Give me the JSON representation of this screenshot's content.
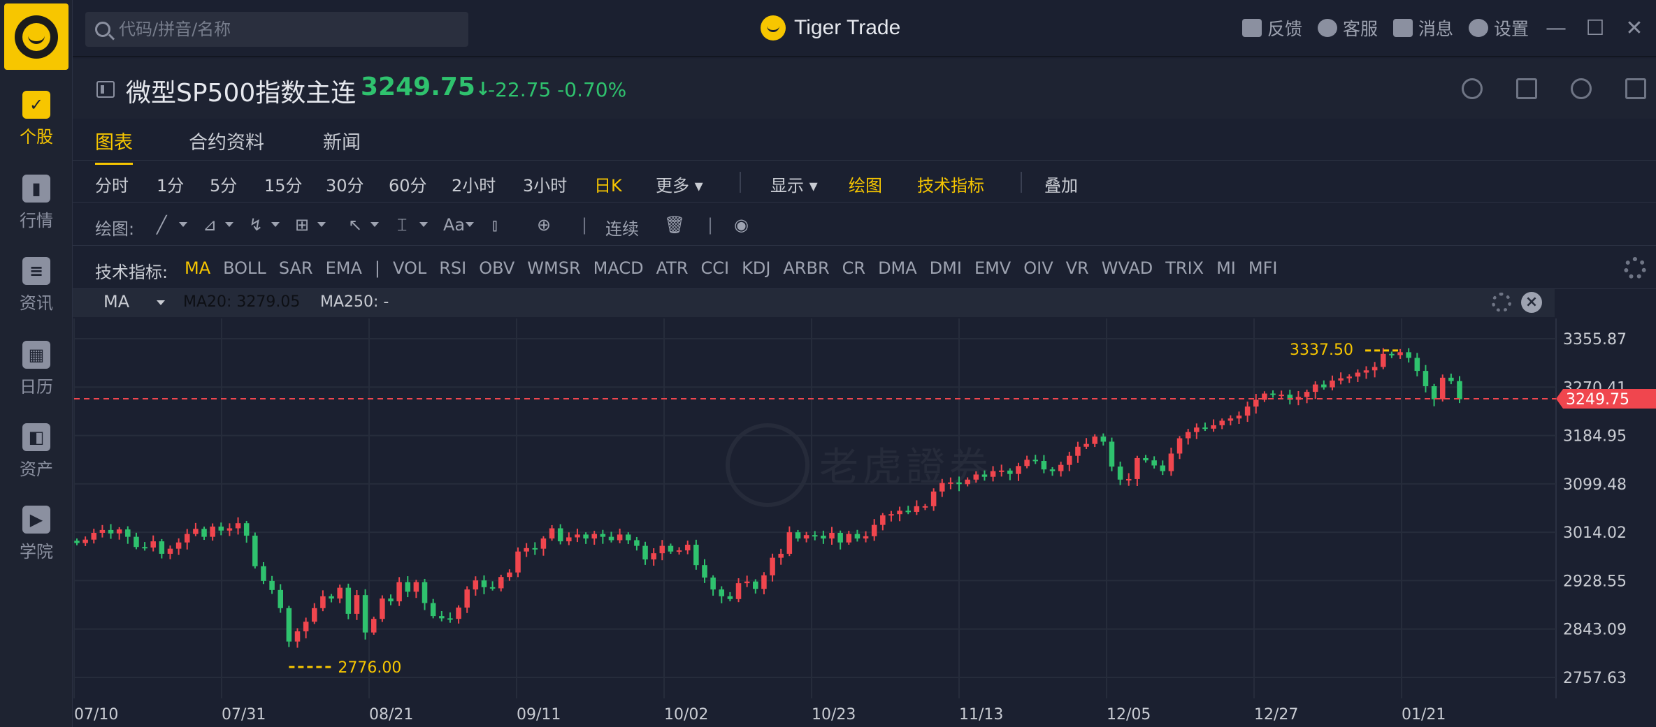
{
  "app": {
    "title": "Tiger Trade"
  },
  "search": {
    "placeholder": "代码/拼音/名称"
  },
  "top_actions": {
    "feedback": "反馈",
    "service": "客服",
    "messages": "消息",
    "settings": "设置"
  },
  "sidebar": {
    "items": [
      {
        "label": "个股",
        "active": true
      },
      {
        "label": "行情"
      },
      {
        "label": "资讯"
      },
      {
        "label": "日历"
      },
      {
        "label": "资产"
      },
      {
        "label": "学院"
      }
    ]
  },
  "instrument": {
    "name": "微型SP500指数主连",
    "price": "3249.75",
    "arrow": "↓",
    "change": "-22.75",
    "change_pct": "-0.70%"
  },
  "tabs": [
    "图表",
    "合约资料",
    "新闻"
  ],
  "periods": {
    "items": [
      "分时",
      "1分",
      "5分",
      "15分",
      "30分",
      "60分",
      "2小时",
      "3小时",
      "日K"
    ],
    "active": "日K",
    "more": "更多",
    "display": "显示",
    "draw": "绘图",
    "tech": "技术指标",
    "overlay": "叠加"
  },
  "drawbar": {
    "label": "绘图:",
    "continuous": "连续"
  },
  "indicators": {
    "label": "技术指标:",
    "list": [
      "MA",
      "BOLL",
      "SAR",
      "EMA",
      "|",
      "VOL",
      "RSI",
      "OBV",
      "WMSR",
      "MACD",
      "ATR",
      "CCI",
      "KDJ",
      "ARBR",
      "CR",
      "DMA",
      "DMI",
      "EMV",
      "OIV",
      "VR",
      "WVAD",
      "TRIX",
      "MI",
      "MFI"
    ],
    "active": "MA"
  },
  "ma": {
    "selector": "MA",
    "ma20": "MA20: 3279.05",
    "ma250": "MA250: -"
  },
  "watermark": "老虎證券",
  "colors": {
    "up": "#f0464e",
    "down": "#2fc26e",
    "accent": "#f7c600",
    "bg": "#1b2030"
  },
  "chart_data": {
    "type": "candlestick",
    "y_ticks": [
      "3355.87",
      "3270.41",
      "3184.95",
      "3099.48",
      "3014.02",
      "2928.55",
      "2843.09",
      "2757.63"
    ],
    "x_ticks": [
      "07/10",
      "07/31",
      "08/21",
      "09/11",
      "10/02",
      "10/23",
      "11/13",
      "12/05",
      "12/27",
      "01/21"
    ],
    "ylim": [
      2740,
      3380
    ],
    "last_price": "3249.75",
    "high_label": "3337.50",
    "low_label": "2776.00",
    "close": [
      2995,
      3001,
      3013,
      3018,
      3012,
      3019,
      3006,
      2988,
      2987,
      2998,
      2976,
      2985,
      2996,
      3011,
      3020,
      3006,
      3024,
      3017,
      3021,
      3030,
      3008,
      2954,
      2928,
      2912,
      2880,
      2821,
      2839,
      2856,
      2880,
      2901,
      2897,
      2916,
      2870,
      2903,
      2837,
      2861,
      2897,
      2892,
      2926,
      2909,
      2926,
      2889,
      2866,
      2862,
      2861,
      2881,
      2913,
      2929,
      2917,
      2915,
      2935,
      2943,
      2980,
      2986,
      2985,
      3003,
      3021,
      2998,
      3005,
      3010,
      3003,
      3011,
      3006,
      3000,
      3010,
      3000,
      2990,
      2966,
      2977,
      2990,
      2980,
      2982,
      2992,
      2956,
      2934,
      2913,
      2901,
      2896,
      2924,
      2927,
      2914,
      2938,
      2969,
      2976,
      3014,
      3003,
      3009,
      3008,
      3003,
      3013,
      2996,
      3011,
      3003,
      3007,
      3027,
      3044,
      3046,
      3052,
      3050,
      3060,
      3060,
      3086,
      3101,
      3102,
      3099,
      3107,
      3116,
      3112,
      3122,
      3123,
      3117,
      3131,
      3142,
      3140,
      3125,
      3122,
      3133,
      3149,
      3165,
      3170,
      3183,
      3174,
      3130,
      3107,
      3108,
      3145,
      3141,
      3132,
      3122,
      3153,
      3180,
      3191,
      3199,
      3197,
      3203,
      3211,
      3215,
      3220,
      3236,
      3248,
      3259,
      3257,
      3257,
      3248,
      3253,
      3262,
      3275,
      3270,
      3282,
      3286,
      3289,
      3296,
      3300,
      3306,
      3329,
      3327,
      3332,
      3322,
      3299,
      3272,
      3249,
      3287,
      3281,
      3249
    ]
  }
}
